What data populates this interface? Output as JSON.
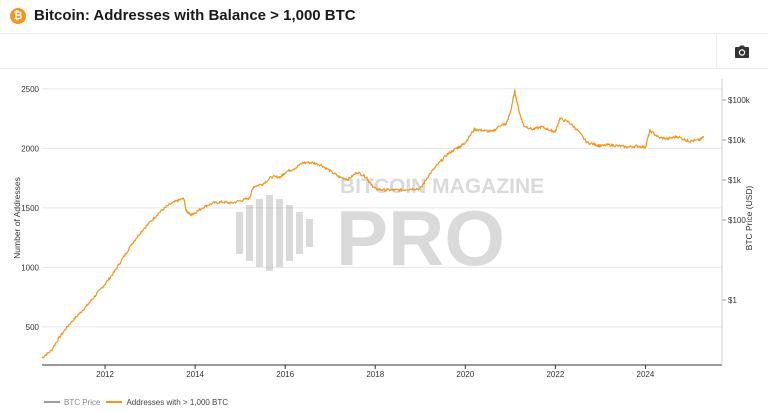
{
  "header": {
    "title": "Bitcoin: Addresses with Balance > 1,000 BTC",
    "badge_glyph": "₿",
    "badge_icon": "bitcoin-icon"
  },
  "toolbar": {
    "camera_icon": "camera-icon"
  },
  "chart_data": {
    "type": "line",
    "title": "Bitcoin: Addresses with Balance > 1,000 BTC",
    "ylabel": "Number of Addresses",
    "y2label": "BTC Price (USD)",
    "ylim": [
      180,
      2650
    ],
    "y_ticks": [
      500,
      1000,
      1500,
      2000,
      2500
    ],
    "y2_scale": "log",
    "y2_ticks": [
      "$1",
      "$100",
      "$1k",
      "$10k",
      "$100k"
    ],
    "x_ticks": [
      "2012",
      "2014",
      "2016",
      "2018",
      "2020",
      "2022",
      "2024"
    ],
    "xlim": [
      2010.6,
      2025.7
    ],
    "grid": "horizontal",
    "legend_position": "bottom-left",
    "watermark": "BITCOIN MAGAZINE PRO",
    "colors": {
      "addresses": "#f7931a",
      "price": "#9e9e9e"
    },
    "series": [
      {
        "name": "BTC Price",
        "visible": false,
        "values": []
      },
      {
        "name": "Addresses with > 1,000 BTC",
        "visible": true,
        "x": [
          2010.6,
          2010.8,
          2011.0,
          2011.2,
          2011.4,
          2011.6,
          2011.8,
          2012.0,
          2012.2,
          2012.4,
          2012.6,
          2012.8,
          2013.0,
          2013.2,
          2013.4,
          2013.6,
          2013.75,
          2013.8,
          2013.9,
          2014.0,
          2014.2,
          2014.4,
          2014.6,
          2014.8,
          2015.0,
          2015.2,
          2015.3,
          2015.5,
          2015.7,
          2015.9,
          2016.0,
          2016.2,
          2016.4,
          2016.6,
          2016.8,
          2017.0,
          2017.2,
          2017.4,
          2017.6,
          2017.8,
          2017.9,
          2018.0,
          2018.2,
          2018.4,
          2018.6,
          2018.8,
          2019.0,
          2019.2,
          2019.4,
          2019.6,
          2019.8,
          2019.9,
          2020.0,
          2020.2,
          2020.4,
          2020.6,
          2020.8,
          2020.9,
          2021.0,
          2021.1,
          2021.2,
          2021.3,
          2021.5,
          2021.7,
          2021.9,
          2022.0,
          2022.1,
          2022.3,
          2022.5,
          2022.7,
          2022.9,
          2023.0,
          2023.2,
          2023.4,
          2023.6,
          2023.8,
          2024.0,
          2024.1,
          2024.3,
          2024.5,
          2024.7,
          2024.9,
          2025.0,
          2025.2,
          2025.3
        ],
        "values": [
          240,
          300,
          420,
          520,
          600,
          680,
          770,
          860,
          960,
          1080,
          1200,
          1300,
          1380,
          1460,
          1520,
          1560,
          1580,
          1480,
          1440,
          1460,
          1510,
          1540,
          1550,
          1540,
          1560,
          1580,
          1680,
          1700,
          1760,
          1760,
          1800,
          1830,
          1880,
          1880,
          1860,
          1810,
          1760,
          1740,
          1800,
          1760,
          1700,
          1660,
          1650,
          1650,
          1650,
          1660,
          1660,
          1780,
          1870,
          1950,
          2000,
          2020,
          2050,
          2160,
          2150,
          2140,
          2200,
          2200,
          2300,
          2480,
          2300,
          2190,
          2160,
          2180,
          2150,
          2140,
          2250,
          2220,
          2150,
          2050,
          2030,
          2020,
          2030,
          2020,
          2010,
          2020,
          2010,
          2150,
          2090,
          2080,
          2100,
          2070,
          2060,
          2070,
          2100
        ]
      }
    ]
  },
  "legend": {
    "price_label": "BTC Price",
    "addresses_label": "Addresses with > 1,000 BTC"
  }
}
